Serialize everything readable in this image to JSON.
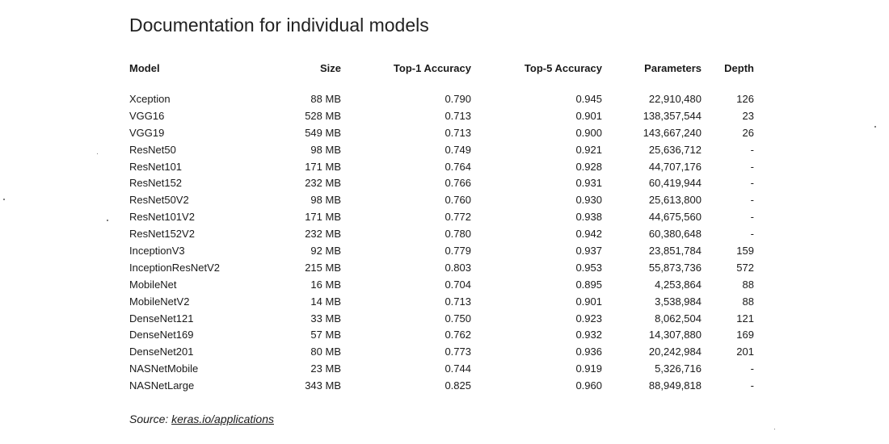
{
  "title": "Documentation for individual models",
  "table": {
    "headers": {
      "model": "Model",
      "size": "Size",
      "top1": "Top-1 Accuracy",
      "top5": "Top-5 Accuracy",
      "params": "Parameters",
      "depth": "Depth"
    },
    "rows": [
      {
        "model": "Xception",
        "size": "88 MB",
        "top1": "0.790",
        "top5": "0.945",
        "params": "22,910,480",
        "depth": "126"
      },
      {
        "model": "VGG16",
        "size": "528 MB",
        "top1": "0.713",
        "top5": "0.901",
        "params": "138,357,544",
        "depth": "23"
      },
      {
        "model": "VGG19",
        "size": "549 MB",
        "top1": "0.713",
        "top5": "0.900",
        "params": "143,667,240",
        "depth": "26"
      },
      {
        "model": "ResNet50",
        "size": "98 MB",
        "top1": "0.749",
        "top5": "0.921",
        "params": "25,636,712",
        "depth": "-"
      },
      {
        "model": "ResNet101",
        "size": "171 MB",
        "top1": "0.764",
        "top5": "0.928",
        "params": "44,707,176",
        "depth": "-"
      },
      {
        "model": "ResNet152",
        "size": "232 MB",
        "top1": "0.766",
        "top5": "0.931",
        "params": "60,419,944",
        "depth": "-"
      },
      {
        "model": "ResNet50V2",
        "size": "98 MB",
        "top1": "0.760",
        "top5": "0.930",
        "params": "25,613,800",
        "depth": "-"
      },
      {
        "model": "ResNet101V2",
        "size": "171 MB",
        "top1": "0.772",
        "top5": "0.938",
        "params": "44,675,560",
        "depth": "-"
      },
      {
        "model": "ResNet152V2",
        "size": "232 MB",
        "top1": "0.780",
        "top5": "0.942",
        "params": "60,380,648",
        "depth": "-"
      },
      {
        "model": "InceptionV3",
        "size": "92 MB",
        "top1": "0.779",
        "top5": "0.937",
        "params": "23,851,784",
        "depth": "159"
      },
      {
        "model": "InceptionResNetV2",
        "size": "215 MB",
        "top1": "0.803",
        "top5": "0.953",
        "params": "55,873,736",
        "depth": "572"
      },
      {
        "model": "MobileNet",
        "size": "16 MB",
        "top1": "0.704",
        "top5": "0.895",
        "params": "4,253,864",
        "depth": "88"
      },
      {
        "model": "MobileNetV2",
        "size": "14 MB",
        "top1": "0.713",
        "top5": "0.901",
        "params": "3,538,984",
        "depth": "88"
      },
      {
        "model": "DenseNet121",
        "size": "33 MB",
        "top1": "0.750",
        "top5": "0.923",
        "params": "8,062,504",
        "depth": "121"
      },
      {
        "model": "DenseNet169",
        "size": "57 MB",
        "top1": "0.762",
        "top5": "0.932",
        "params": "14,307,880",
        "depth": "169"
      },
      {
        "model": "DenseNet201",
        "size": "80 MB",
        "top1": "0.773",
        "top5": "0.936",
        "params": "20,242,984",
        "depth": "201"
      },
      {
        "model": "NASNetMobile",
        "size": "23 MB",
        "top1": "0.744",
        "top5": "0.919",
        "params": "5,326,716",
        "depth": "-"
      },
      {
        "model": "NASNetLarge",
        "size": "343 MB",
        "top1": "0.825",
        "top5": "0.960",
        "params": "88,949,818",
        "depth": "-"
      }
    ]
  },
  "source": {
    "label": "Source: ",
    "link_text": "keras.io/applications"
  }
}
